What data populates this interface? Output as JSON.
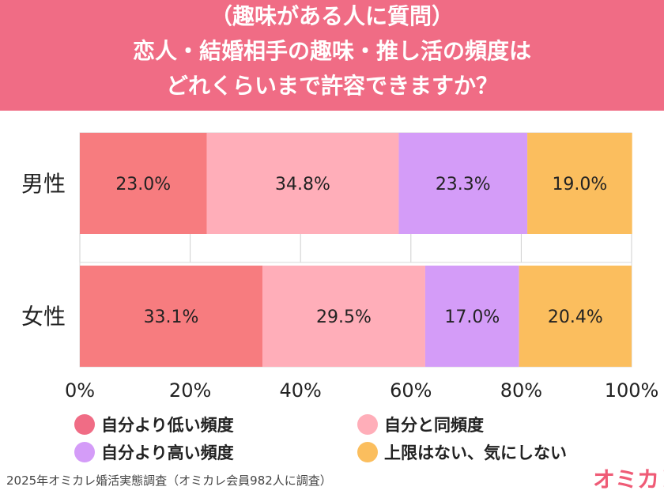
{
  "header": {
    "line1": "（趣味がある人に質問）",
    "line2": "恋人・結婚相手の趣味・推し活の頻度は",
    "line3": "どれくらいまで許容できますか？"
  },
  "chart_data": {
    "type": "bar",
    "orientation": "horizontal",
    "stacked": true,
    "categories": [
      "男性",
      "女性"
    ],
    "series": [
      {
        "name": "自分より低い頻度",
        "values": [
          23.0,
          33.1
        ],
        "color": "#f77c7f"
      },
      {
        "name": "自分と同頻度",
        "values": [
          34.8,
          29.5
        ],
        "color": "#ffaeb9"
      },
      {
        "name": "自分より高い頻度",
        "values": [
          23.3,
          17.0
        ],
        "color": "#d49cf8"
      },
      {
        "name": "上限はない、気にしない",
        "values": [
          19.0,
          20.4
        ],
        "color": "#fbbe5e"
      }
    ],
    "data_labels": [
      [
        "23.0%",
        "34.8%",
        "23.3%",
        "19.0%"
      ],
      [
        "33.1%",
        "29.5%",
        "17.0%",
        "20.4%"
      ]
    ],
    "xlim": [
      0,
      100
    ],
    "x_ticks": [
      "0%",
      "20%",
      "40%",
      "60%",
      "80%",
      "100%"
    ],
    "x_tick_values": [
      0,
      20,
      40,
      60,
      80,
      100
    ],
    "grid": true,
    "legend_position": "bottom"
  },
  "legend": [
    {
      "label": "自分より低い頻度",
      "color": "#f06c85"
    },
    {
      "label": "自分と同頻度",
      "color": "#ffaeb9"
    },
    {
      "label": "自分より高い頻度",
      "color": "#d49cf8"
    },
    {
      "label": "上限はない、気にしない",
      "color": "#fbbe5e"
    }
  ],
  "footer": {
    "source": "2025年オミカレ婚活実態調査（オミカレ会員982人に調査）",
    "logo": "オミカレ"
  }
}
